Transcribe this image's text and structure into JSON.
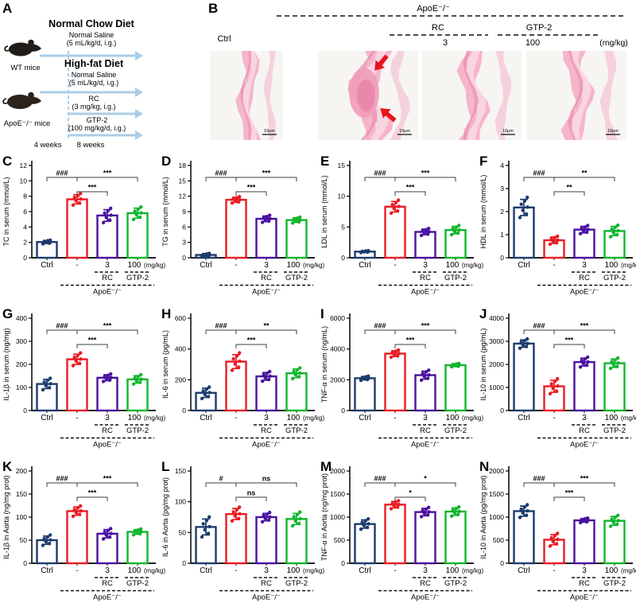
{
  "panel_a": {
    "letter": "A",
    "diet1": "Normal Chow Diet",
    "diet1_sub1": "Normal Saline",
    "diet1_sub2": "(5 mL/kg/d, i.g.)",
    "wt_mice": "WT mice",
    "diet2": "High-fat Diet",
    "diet2_sub1": "Normal Saline",
    "diet2_sub2": "(5 mL/kg/d, i.g.)",
    "rc1": "RC",
    "rc2": "(3 mg/kg, i.g.)",
    "apoe_mice": "ApoE⁻/⁻ mice",
    "gtp1": "GTP-2",
    "gtp2": "(100 mg/kg/d, i.g.)",
    "weeks4": "4 weeks",
    "weeks8": "8 weeks",
    "arrow_color": "#a9cde8"
  },
  "panel_b": {
    "letter": "B",
    "ctrl": "Ctrl",
    "apoe": "ApoE⁻/⁻",
    "rc": "RC",
    "rc_dose": "3",
    "gtp": "GTP-2",
    "gtp_dose": "100",
    "unit": "(mg/kg)",
    "scale_bar": "10μm",
    "images": [
      {
        "name": "ctrl-aorta",
        "arrows": false
      },
      {
        "name": "apoe-model-aorta",
        "arrows": true
      },
      {
        "name": "rc-aorta",
        "arrows": false
      },
      {
        "name": "gtp2-aorta",
        "arrows": false
      }
    ]
  },
  "chart_common": {
    "categories": [
      "Ctrl",
      "-",
      "3",
      "100"
    ],
    "unit": "(mg/kg)",
    "rc_line": "RC",
    "gtp_line": "GTP-2",
    "apoe_line": "ApoE⁻/⁻",
    "colors": [
      "#1c3c6e",
      "#ea1c24",
      "#4a10a0",
      "#10b62c"
    ],
    "dot_offsets_sd": [
      -1.25,
      -0.8,
      -0.35,
      0.05,
      0.4,
      0.8,
      1.25
    ],
    "dot_jitter": [
      -0.45,
      0.28,
      -0.12,
      0.42,
      -0.3,
      0.08,
      0.38
    ]
  },
  "chart_data": [
    {
      "panel": "C",
      "type": "bar",
      "ylabel": "TC in serum (mmol/L)",
      "ylim": [
        0,
        12
      ],
      "yticks": [
        0,
        2,
        4,
        6,
        8,
        10,
        12
      ],
      "categories": [
        "Ctrl",
        "-",
        "3",
        "100"
      ],
      "means": [
        2.05,
        7.6,
        5.5,
        5.8
      ],
      "sd": [
        0.2,
        0.6,
        0.75,
        0.65
      ],
      "sig": {
        "ctrl_vs_model": "###",
        "model_vs_rc": "***",
        "model_vs_gtp": "***"
      }
    },
    {
      "panel": "D",
      "type": "bar",
      "ylabel": "TG in serum (mmol/L)",
      "ylim": [
        0,
        18
      ],
      "yticks": [
        0,
        3,
        6,
        9,
        12,
        15,
        18
      ],
      "categories": [
        "Ctrl",
        "-",
        "3",
        "100"
      ],
      "means": [
        0.55,
        11.3,
        7.6,
        7.35
      ],
      "sd": [
        0.25,
        0.5,
        0.55,
        0.45
      ],
      "sig": {
        "ctrl_vs_model": "###",
        "model_vs_rc": "***",
        "model_vs_gtp": "***"
      }
    },
    {
      "panel": "E",
      "type": "bar",
      "ylabel": "LDL in serum (mmol/L)",
      "ylim": [
        0,
        15
      ],
      "yticks": [
        0,
        5,
        10,
        15
      ],
      "categories": [
        "Ctrl",
        "-",
        "3",
        "100"
      ],
      "means": [
        1.0,
        8.3,
        4.2,
        4.5
      ],
      "sd": [
        0.12,
        0.85,
        0.45,
        0.6
      ],
      "sig": {
        "ctrl_vs_model": "###",
        "model_vs_rc": "***",
        "model_vs_gtp": "***"
      }
    },
    {
      "panel": "F",
      "type": "bar",
      "ylabel": "HDL in serum (mmol/L)",
      "ylim": [
        0,
        4
      ],
      "yticks": [
        0,
        1,
        2,
        3,
        4
      ],
      "categories": [
        "Ctrl",
        "-",
        "3",
        "100"
      ],
      "means": [
        2.18,
        0.76,
        1.22,
        1.16
      ],
      "sd": [
        0.35,
        0.14,
        0.14,
        0.2
      ],
      "sig": {
        "ctrl_vs_model": "###",
        "model_vs_rc": "**",
        "model_vs_gtp": "**"
      }
    },
    {
      "panel": "G",
      "type": "bar",
      "ylabel": "IL-1β in serum (ng/mg)",
      "ylim": [
        0,
        400
      ],
      "yticks": [
        0,
        100,
        200,
        300,
        400
      ],
      "categories": [
        "Ctrl",
        "-",
        "3",
        "100"
      ],
      "means": [
        115,
        222,
        142,
        135
      ],
      "sd": [
        20,
        22,
        13,
        16
      ],
      "sig": {
        "ctrl_vs_model": "###",
        "model_vs_rc": "***",
        "model_vs_gtp": "***"
      }
    },
    {
      "panel": "H",
      "type": "bar",
      "ylabel": "IL-6 in serum (pg/mL)",
      "ylim": [
        0,
        600
      ],
      "yticks": [
        0,
        200,
        400,
        600
      ],
      "categories": [
        "Ctrl",
        "-",
        "3",
        "100"
      ],
      "means": [
        115,
        318,
        222,
        242
      ],
      "sd": [
        30,
        45,
        25,
        28
      ],
      "sig": {
        "ctrl_vs_model": "###",
        "model_vs_rc": "***",
        "model_vs_gtp": "**"
      }
    },
    {
      "panel": "I",
      "type": "bar",
      "ylabel": "TNF-α in serum (ng/mL)",
      "ylim": [
        0,
        6000
      ],
      "yticks": [
        0,
        2000,
        4000,
        6000
      ],
      "categories": [
        "Ctrl",
        "-",
        "3",
        "100"
      ],
      "means": [
        2100,
        3700,
        2300,
        2950
      ],
      "sd": [
        110,
        190,
        260,
        90
      ],
      "sig": {
        "ctrl_vs_model": "###",
        "model_vs_rc": "***",
        "model_vs_gtp": "***"
      }
    },
    {
      "panel": "J",
      "type": "bar",
      "ylabel": "IL-10 in serum (pg/mL)",
      "ylim": [
        0,
        4000
      ],
      "yticks": [
        0,
        1000,
        2000,
        3000,
        4000
      ],
      "categories": [
        "Ctrl",
        "-",
        "3",
        "100"
      ],
      "means": [
        2900,
        1050,
        2100,
        2050
      ],
      "sd": [
        160,
        260,
        170,
        180
      ],
      "sig": {
        "ctrl_vs_model": "###",
        "model_vs_rc": "***",
        "model_vs_gtp": "***"
      }
    },
    {
      "panel": "K",
      "type": "bar",
      "ylabel": "IL-1β in Aorta (ng/mg prot)",
      "ylim": [
        0,
        200
      ],
      "yticks": [
        0,
        50,
        100,
        150,
        200
      ],
      "categories": [
        "Ctrl",
        "-",
        "3",
        "100"
      ],
      "means": [
        50,
        113,
        64,
        68
      ],
      "sd": [
        9,
        9,
        9,
        5
      ],
      "sig": {
        "ctrl_vs_model": "###",
        "model_vs_rc": "***",
        "model_vs_gtp": "***"
      }
    },
    {
      "panel": "L",
      "type": "bar",
      "ylabel": "IL-6 in Aorta (pg/mg prot)",
      "ylim": [
        0,
        150
      ],
      "yticks": [
        0,
        50,
        100,
        150
      ],
      "categories": [
        "Ctrl",
        "-",
        "3",
        "100"
      ],
      "means": [
        59,
        80,
        75,
        72
      ],
      "sd": [
        13,
        9,
        6,
        9
      ],
      "sig": {
        "ctrl_vs_model": "#",
        "model_vs_rc": "ns",
        "model_vs_gtp": "ns"
      }
    },
    {
      "panel": "M",
      "type": "bar",
      "ylabel": "TNF-α in Aorta (ng/mg prot)",
      "ylim": [
        0,
        2000
      ],
      "yticks": [
        0,
        500,
        1000,
        1500,
        2000
      ],
      "categories": [
        "Ctrl",
        "-",
        "3",
        "100"
      ],
      "means": [
        850,
        1270,
        1110,
        1120
      ],
      "sd": [
        90,
        70,
        80,
        80
      ],
      "sig": {
        "ctrl_vs_model": "###",
        "model_vs_rc": "*",
        "model_vs_gtp": "*"
      }
    },
    {
      "panel": "N",
      "type": "bar",
      "ylabel": "IL-10 in Aorta (pg/mg prot)",
      "ylim": [
        0,
        2000
      ],
      "yticks": [
        0,
        500,
        1000,
        1500,
        2000
      ],
      "categories": [
        "Ctrl",
        "-",
        "3",
        "100"
      ],
      "means": [
        1130,
        510,
        930,
        920
      ],
      "sd": [
        110,
        110,
        40,
        95
      ],
      "sig": {
        "ctrl_vs_model": "###",
        "model_vs_rc": "***",
        "model_vs_gtp": "***"
      }
    }
  ]
}
